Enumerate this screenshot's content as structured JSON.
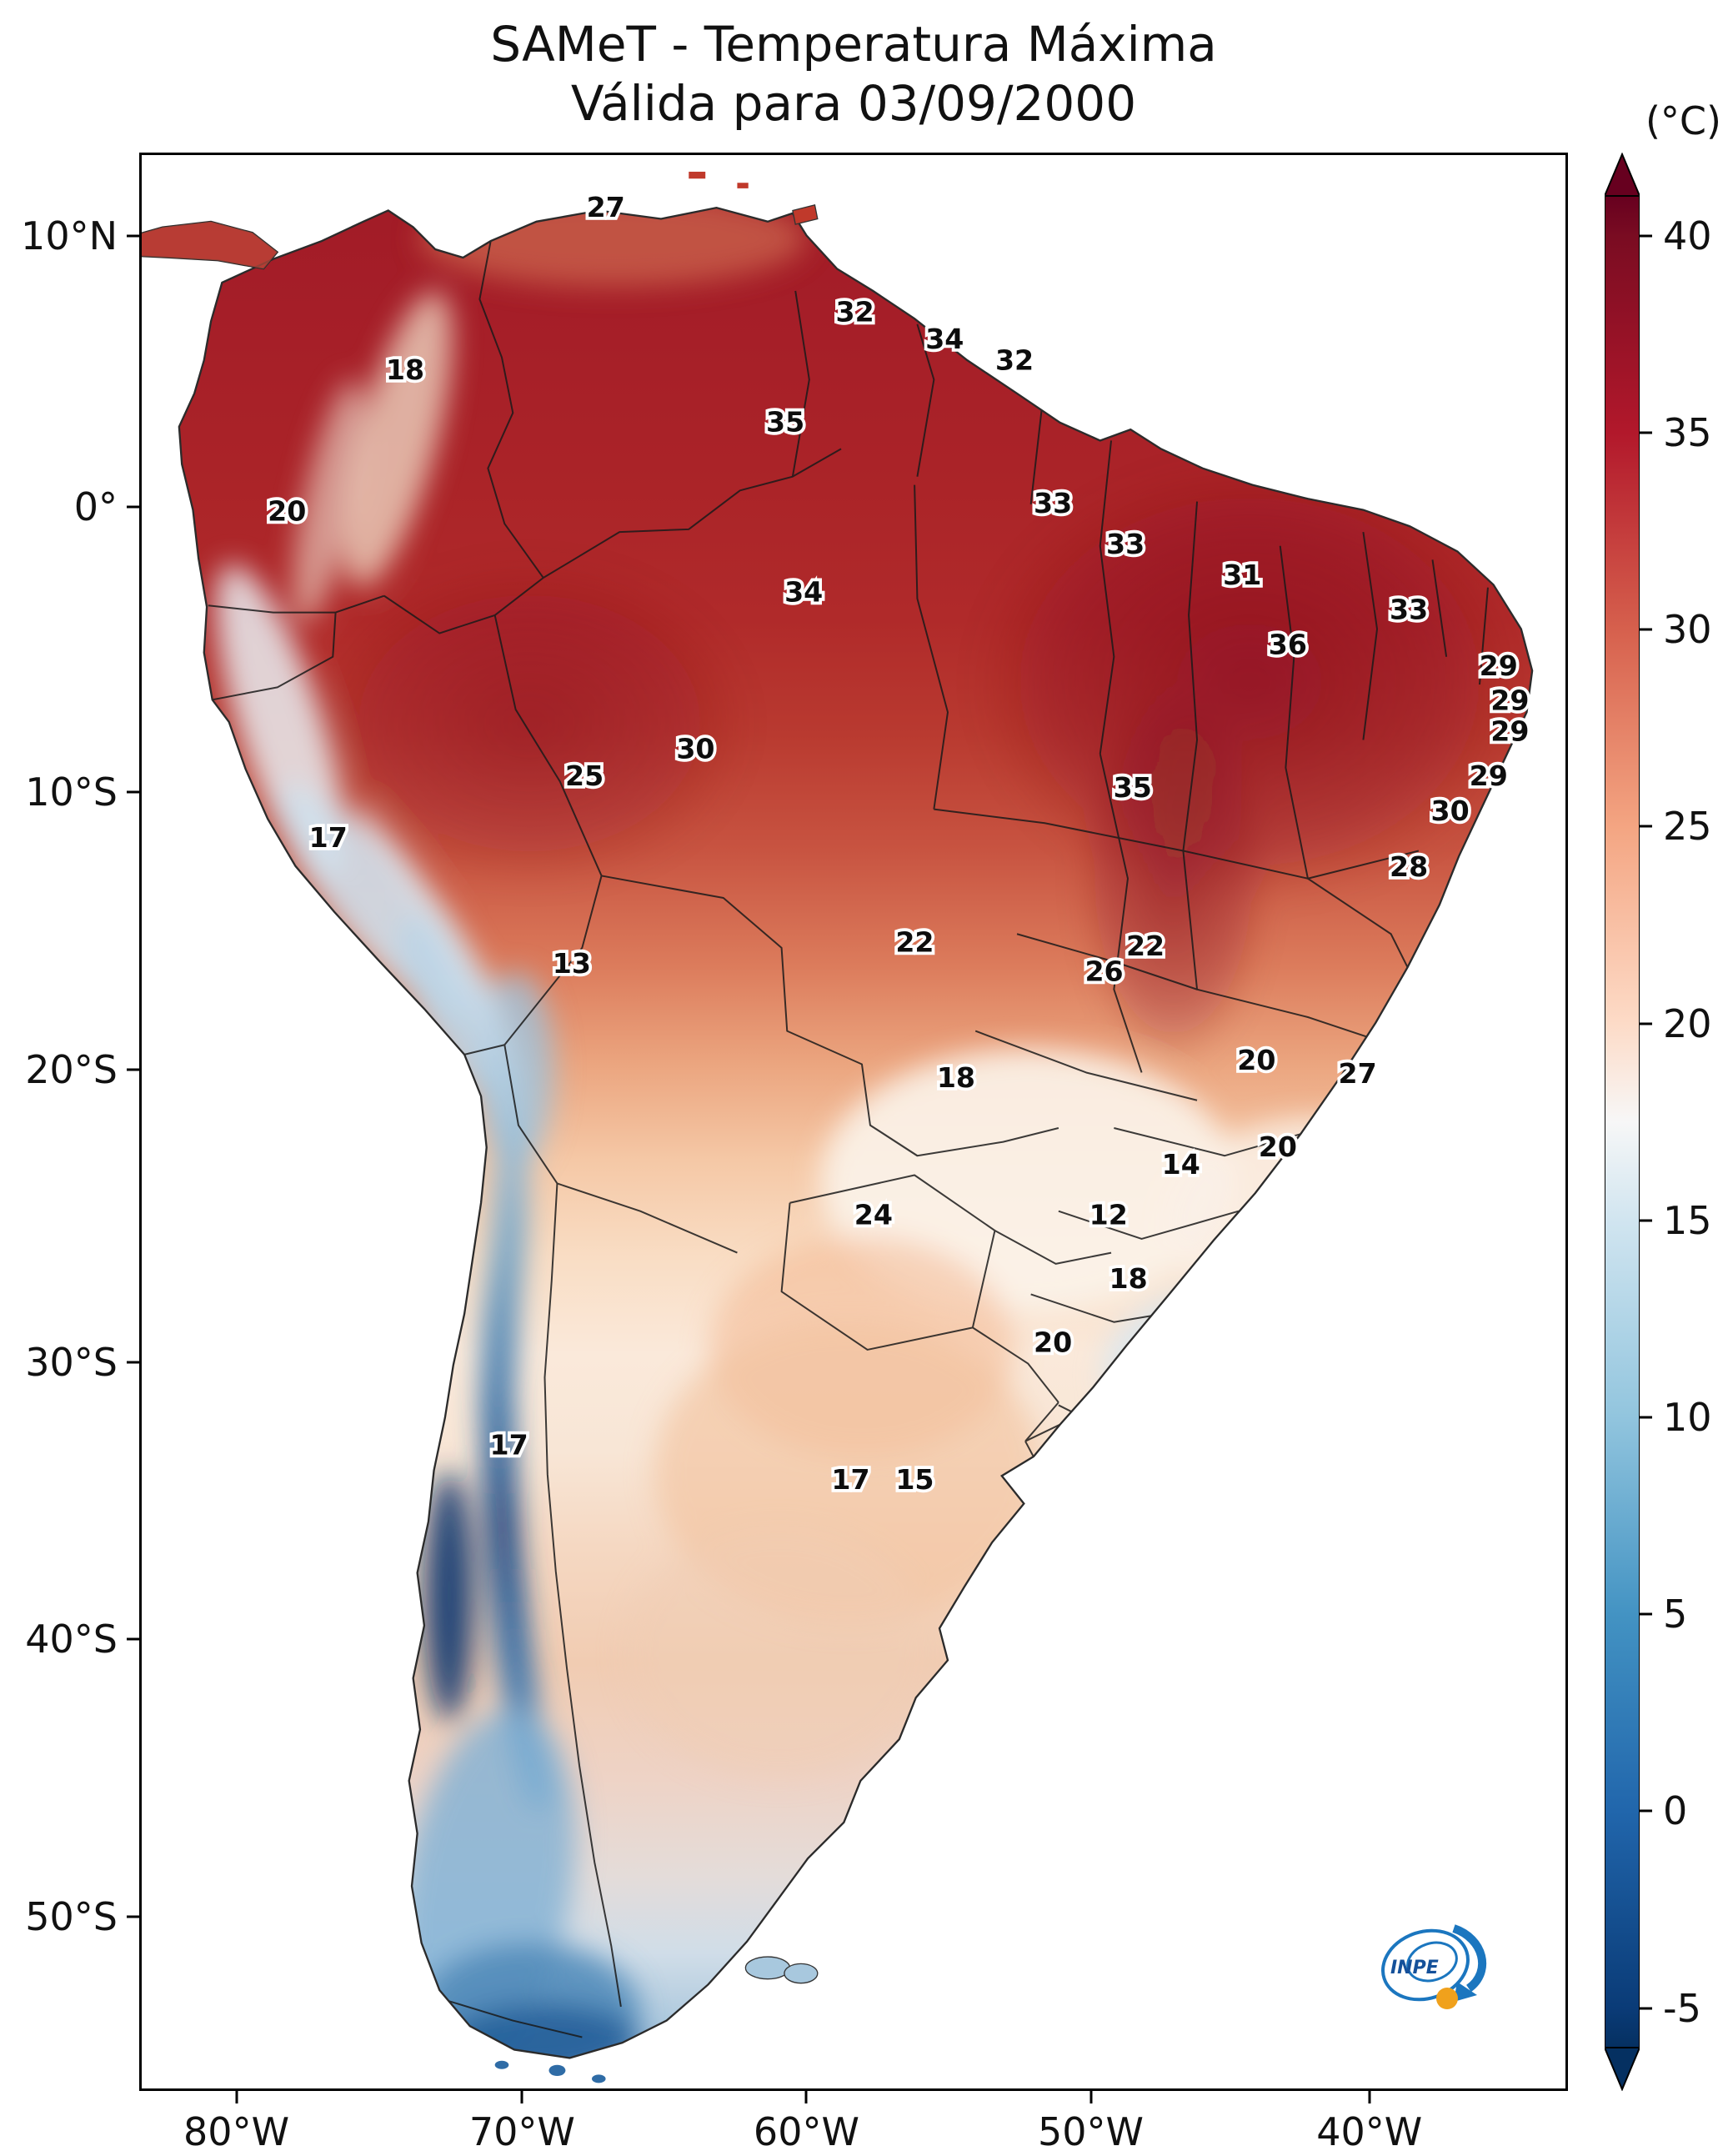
{
  "title": {
    "line1": "SAMeT - Temperatura Máxima",
    "line2": "Válida para 03/09/2000"
  },
  "colorbar": {
    "unit_label": "(°C)",
    "ticks": [
      "40",
      "35",
      "30",
      "25",
      "20",
      "15",
      "10",
      "5",
      "0",
      "-5"
    ],
    "top_color": "#67001f",
    "white_point_color": "#f7f7f7",
    "bottom_color": "#053061"
  },
  "axes": {
    "lat_ticks": [
      {
        "label": "10°N",
        "pct": 4.3
      },
      {
        "label": "0°",
        "pct": 18.3
      },
      {
        "label": "10°S",
        "pct": 33.0
      },
      {
        "label": "20°S",
        "pct": 47.3
      },
      {
        "label": "30°S",
        "pct": 62.4
      },
      {
        "label": "40°S",
        "pct": 76.7
      },
      {
        "label": "50°S",
        "pct": 91.0
      }
    ],
    "lon_ticks": [
      {
        "label": "80°W",
        "pct": 6.8
      },
      {
        "label": "70°W",
        "pct": 26.8
      },
      {
        "label": "60°W",
        "pct": 46.7
      },
      {
        "label": "50°W",
        "pct": 66.6
      },
      {
        "label": "40°W",
        "pct": 86.1
      }
    ]
  },
  "chart_data": {
    "type": "heatmap",
    "title": "SAMeT - Temperatura Máxima",
    "subtitle": "Válida para 03/09/2000",
    "region": "South America",
    "colorbar_unit": "°C",
    "colorbar_range": [
      -5,
      40
    ],
    "colorbar_tick_step": 5,
    "colormap": "red (hot) to white to blue (cold)",
    "lat_axis_labels": [
      "10°N",
      "0°",
      "10°S",
      "20°S",
      "30°S",
      "40°S",
      "50°S"
    ],
    "lon_axis_labels": [
      "80°W",
      "70°W",
      "60°W",
      "50°W",
      "40°W"
    ],
    "points": [
      {
        "value": "27",
        "x_pct": 32.6,
        "y_pct": 3.2
      },
      {
        "value": "32",
        "x_pct": 50.1,
        "y_pct": 8.6
      },
      {
        "value": "34",
        "x_pct": 56.4,
        "y_pct": 10.0
      },
      {
        "value": "32",
        "x_pct": 61.3,
        "y_pct": 11.1
      },
      {
        "value": "18",
        "x_pct": 18.5,
        "y_pct": 11.6
      },
      {
        "value": "35",
        "x_pct": 45.2,
        "y_pct": 14.3
      },
      {
        "value": "20",
        "x_pct": 10.2,
        "y_pct": 18.9
      },
      {
        "value": "33",
        "x_pct": 64.0,
        "y_pct": 18.5
      },
      {
        "value": "33",
        "x_pct": 69.1,
        "y_pct": 20.6
      },
      {
        "value": "31",
        "x_pct": 77.3,
        "y_pct": 22.2
      },
      {
        "value": "34",
        "x_pct": 46.5,
        "y_pct": 23.1
      },
      {
        "value": "33",
        "x_pct": 89.0,
        "y_pct": 24.0
      },
      {
        "value": "36",
        "x_pct": 80.5,
        "y_pct": 25.8
      },
      {
        "value": "29",
        "x_pct": 95.3,
        "y_pct": 26.9
      },
      {
        "value": "29",
        "x_pct": 96.1,
        "y_pct": 28.7
      },
      {
        "value": "29",
        "x_pct": 96.1,
        "y_pct": 30.3
      },
      {
        "value": "30",
        "x_pct": 38.9,
        "y_pct": 31.2
      },
      {
        "value": "25",
        "x_pct": 31.1,
        "y_pct": 32.6
      },
      {
        "value": "35",
        "x_pct": 69.6,
        "y_pct": 33.2
      },
      {
        "value": "29",
        "x_pct": 94.6,
        "y_pct": 32.6
      },
      {
        "value": "30",
        "x_pct": 91.9,
        "y_pct": 34.4
      },
      {
        "value": "17",
        "x_pct": 13.1,
        "y_pct": 35.8
      },
      {
        "value": "28",
        "x_pct": 89.0,
        "y_pct": 37.3
      },
      {
        "value": "22",
        "x_pct": 54.3,
        "y_pct": 41.2
      },
      {
        "value": "22",
        "x_pct": 70.5,
        "y_pct": 41.4
      },
      {
        "value": "26",
        "x_pct": 67.6,
        "y_pct": 42.7
      },
      {
        "value": "13",
        "x_pct": 30.2,
        "y_pct": 42.3
      },
      {
        "value": "18",
        "x_pct": 57.2,
        "y_pct": 48.2
      },
      {
        "value": "20",
        "x_pct": 78.3,
        "y_pct": 47.3
      },
      {
        "value": "27",
        "x_pct": 85.4,
        "y_pct": 48.0
      },
      {
        "value": "20",
        "x_pct": 79.8,
        "y_pct": 51.8
      },
      {
        "value": "14",
        "x_pct": 73.0,
        "y_pct": 52.7
      },
      {
        "value": "24",
        "x_pct": 51.4,
        "y_pct": 55.3
      },
      {
        "value": "12",
        "x_pct": 67.9,
        "y_pct": 55.3
      },
      {
        "value": "18",
        "x_pct": 69.3,
        "y_pct": 58.6
      },
      {
        "value": "20",
        "x_pct": 64.0,
        "y_pct": 61.9
      },
      {
        "value": "17",
        "x_pct": 25.8,
        "y_pct": 67.2
      },
      {
        "value": "17",
        "x_pct": 49.8,
        "y_pct": 69.0
      },
      {
        "value": "15",
        "x_pct": 54.3,
        "y_pct": 69.0
      }
    ]
  },
  "logo": {
    "text": "INPE"
  }
}
